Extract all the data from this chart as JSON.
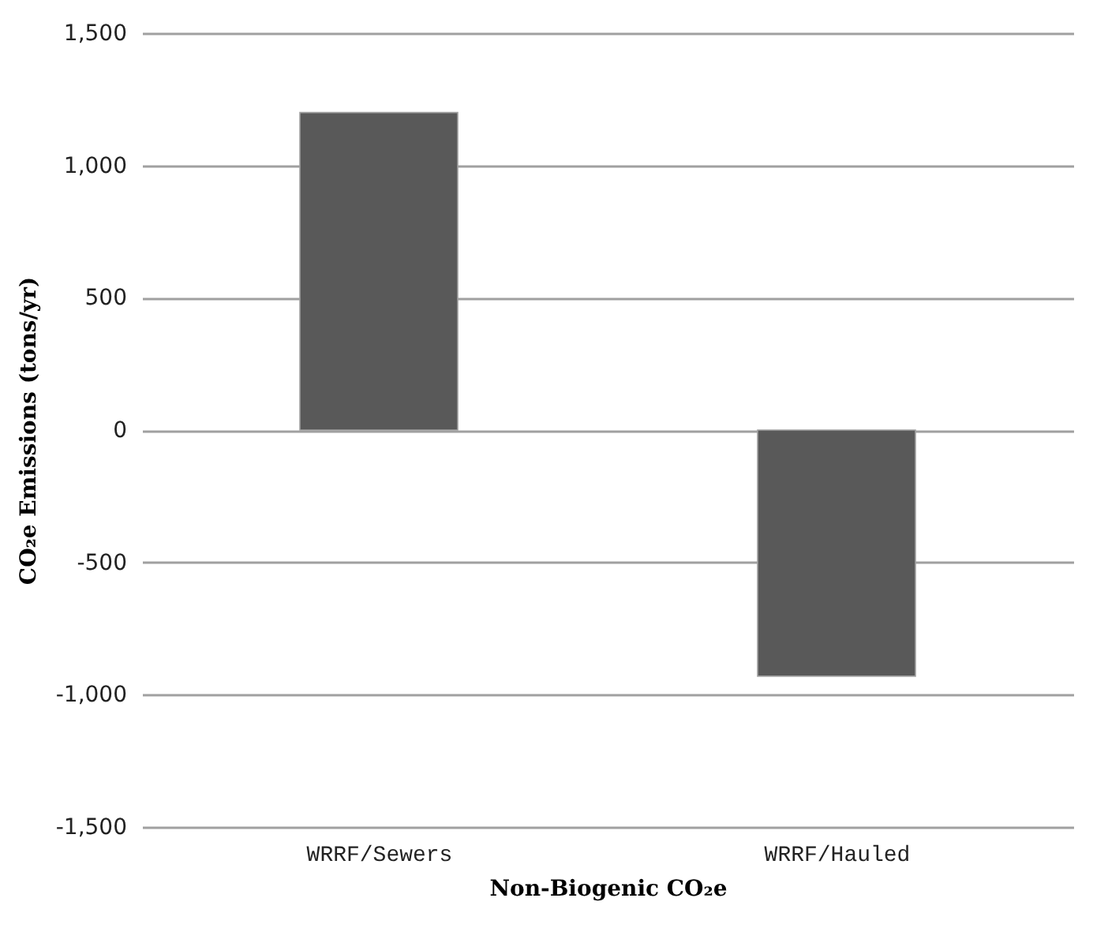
{
  "chart_data": {
    "type": "bar",
    "xlabel": "Non-Biogenic  CO₂e",
    "ylabel": "CO₂e Emissions (tons/yr)",
    "categories": [
      "WRRF/Sewers",
      "WRRF/Hauled"
    ],
    "values": [
      1200,
      -930
    ],
    "color": "#595959",
    "ylim": [
      -1500,
      1500
    ],
    "yticks": [
      {
        "value": -1500,
        "label": "-1,500"
      },
      {
        "value": -1000,
        "label": "-1,000"
      },
      {
        "value": -500,
        "label": "-500"
      },
      0,
      {
        "value": 500,
        "label": "500"
      },
      {
        "value": 1000,
        "label": "1,000"
      },
      {
        "value": 1500,
        "label": "1,500"
      }
    ],
    "grid": "y"
  }
}
